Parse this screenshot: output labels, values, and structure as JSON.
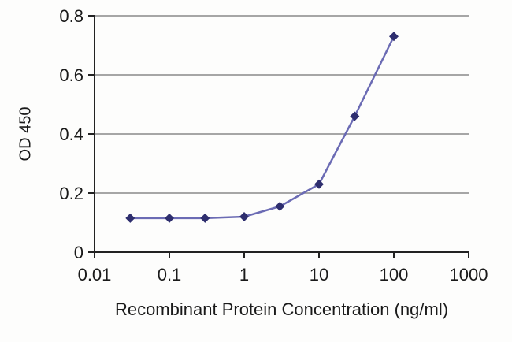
{
  "chart_data": {
    "type": "line",
    "title": "",
    "xlabel": "Recombinant Protein Concentration (ng/ml)",
    "ylabel": "OD 450",
    "x_scale": "log",
    "xlim": [
      0.01,
      1000
    ],
    "ylim": [
      0,
      0.8
    ],
    "x_ticks": [
      0.01,
      0.1,
      1,
      10,
      100,
      1000
    ],
    "x_tick_labels": [
      "0.01",
      "0.1",
      "1",
      "10",
      "100",
      "1000"
    ],
    "y_ticks": [
      0,
      0.2,
      0.4,
      0.6,
      0.8
    ],
    "y_tick_labels": [
      "0",
      "0.2",
      "0.4",
      "0.6",
      "0.8"
    ],
    "grid": "horizontal-only",
    "legend": "none",
    "colors": {
      "line": "#6b6bb4",
      "marker": "#2e2e6e",
      "axis": "#222222",
      "gridline": "#8a8a8a",
      "text": "#1a1a1a"
    },
    "series": [
      {
        "name": "OD 450",
        "marker": "diamond",
        "x": [
          0.03,
          0.1,
          0.3,
          1,
          3,
          10,
          30,
          100
        ],
        "y": [
          0.115,
          0.115,
          0.115,
          0.12,
          0.155,
          0.23,
          0.46,
          0.73
        ]
      }
    ]
  }
}
